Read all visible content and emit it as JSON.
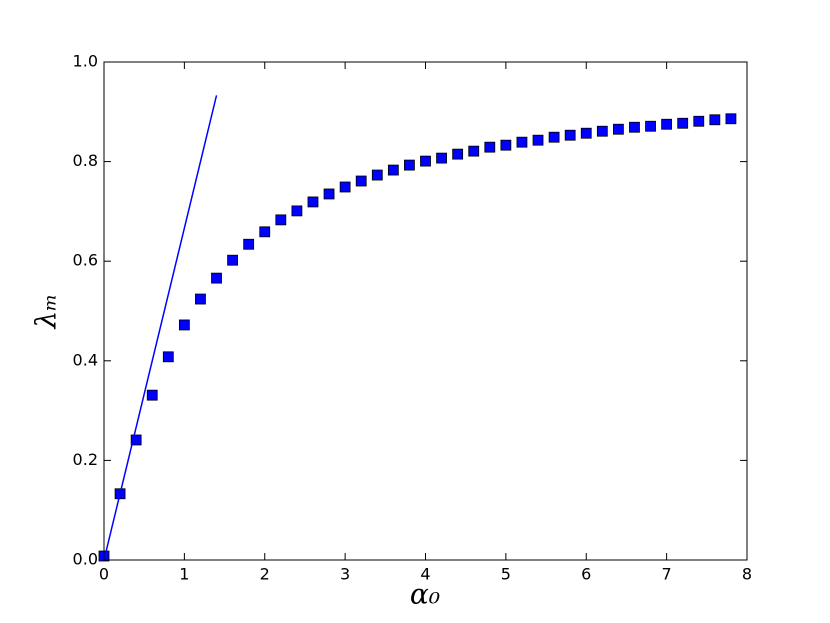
{
  "chart_data": {
    "type": "scatter",
    "x_label": "α₀",
    "y_label": "λₘ",
    "xlim": [
      0,
      8
    ],
    "ylim": [
      0,
      1
    ],
    "xticks": [
      0,
      1,
      2,
      3,
      4,
      5,
      6,
      7,
      8
    ],
    "yticks": [
      {
        "value": 0,
        "label": "0.0"
      },
      0.2,
      0.4,
      0.6,
      0.8,
      {
        "value": 1,
        "label": "1.0"
      }
    ],
    "grid": false,
    "series": [
      {
        "mode": "markers",
        "marker": "square",
        "color": "#0000ff",
        "x": [
          0,
          0.2,
          0.4,
          0.6,
          0.8,
          1.0,
          1.2,
          1.4,
          1.6,
          1.8,
          2.0,
          2.2,
          2.4,
          2.6,
          2.8,
          3.0,
          3.2,
          3.4,
          3.6,
          3.8,
          4.0,
          4.2,
          4.4,
          4.6,
          4.8,
          5.0,
          5.2,
          5.4,
          5.6,
          5.8,
          6.0,
          6.2,
          6.4,
          6.6,
          6.8,
          7.0,
          7.2,
          7.4,
          7.6,
          7.8
        ],
        "values": [
          0.008,
          0.133,
          0.241,
          0.331,
          0.408,
          0.472,
          0.524,
          0.566,
          0.602,
          0.634,
          0.659,
          0.683,
          0.701,
          0.719,
          0.735,
          0.749,
          0.761,
          0.773,
          0.783,
          0.793,
          0.801,
          0.807,
          0.815,
          0.821,
          0.829,
          0.833,
          0.839,
          0.843,
          0.849,
          0.853,
          0.857,
          0.861,
          0.865,
          0.869,
          0.871,
          0.875,
          0.877,
          0.881,
          0.884,
          0.886
        ]
      },
      {
        "mode": "line",
        "color": "#0000ff",
        "x": [
          0,
          1.4
        ],
        "values": [
          0,
          0.933
        ]
      }
    ]
  }
}
